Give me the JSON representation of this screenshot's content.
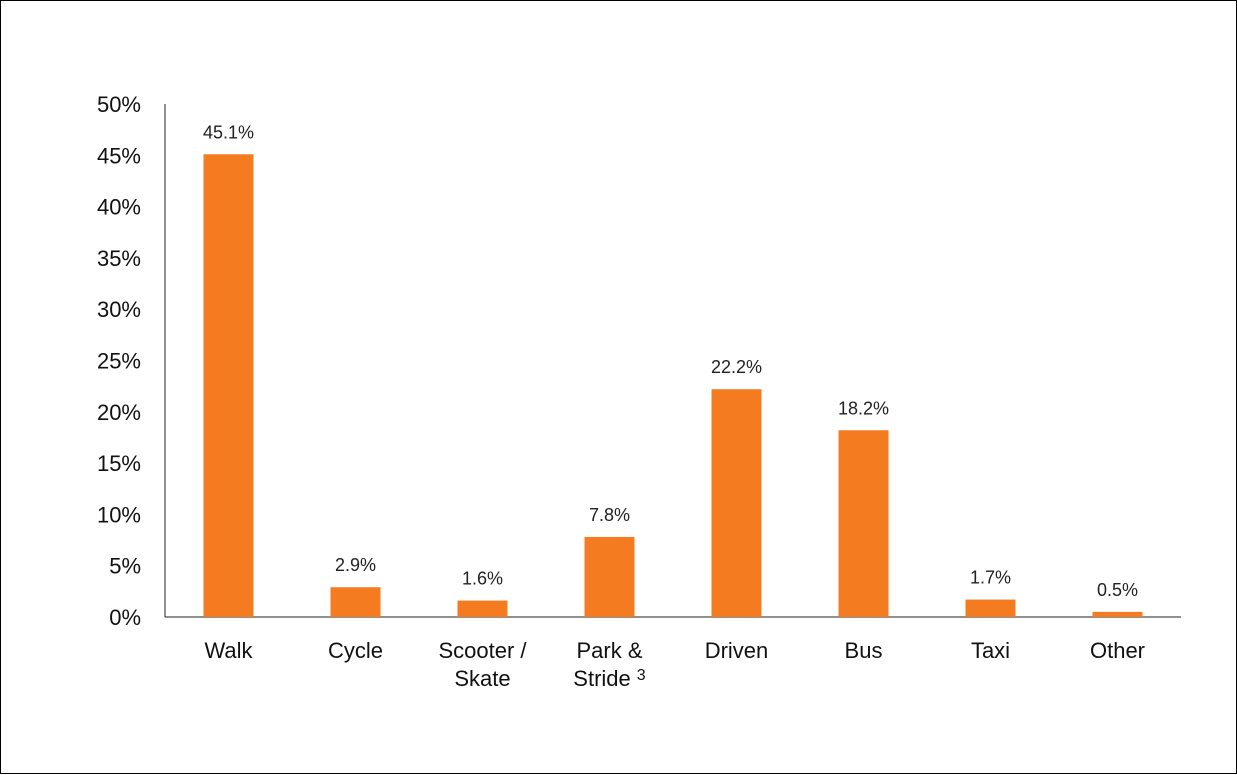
{
  "chart_data": {
    "type": "bar",
    "categories": [
      {
        "lines": [
          "Walk"
        ],
        "sup": ""
      },
      {
        "lines": [
          "Cycle"
        ],
        "sup": ""
      },
      {
        "lines": [
          "Scooter /",
          "Skate"
        ],
        "sup": ""
      },
      {
        "lines": [
          "Park &",
          "Stride"
        ],
        "sup": "3"
      },
      {
        "lines": [
          "Driven"
        ],
        "sup": ""
      },
      {
        "lines": [
          "Bus"
        ],
        "sup": ""
      },
      {
        "lines": [
          "Taxi"
        ],
        "sup": ""
      },
      {
        "lines": [
          "Other"
        ],
        "sup": ""
      }
    ],
    "values": [
      45.1,
      2.9,
      1.6,
      7.8,
      22.2,
      18.2,
      1.7,
      0.5
    ],
    "data_labels": [
      "45.1%",
      "2.9%",
      "1.6%",
      "7.8%",
      "22.2%",
      "18.2%",
      "1.7%",
      "0.5%"
    ],
    "yticks": [
      "0%",
      "5%",
      "10%",
      "15%",
      "20%",
      "25%",
      "30%",
      "35%",
      "40%",
      "45%",
      "50%"
    ],
    "ylim": [
      0,
      50
    ],
    "bar_color": "#F47B20",
    "grid": false,
    "legend": "none"
  }
}
